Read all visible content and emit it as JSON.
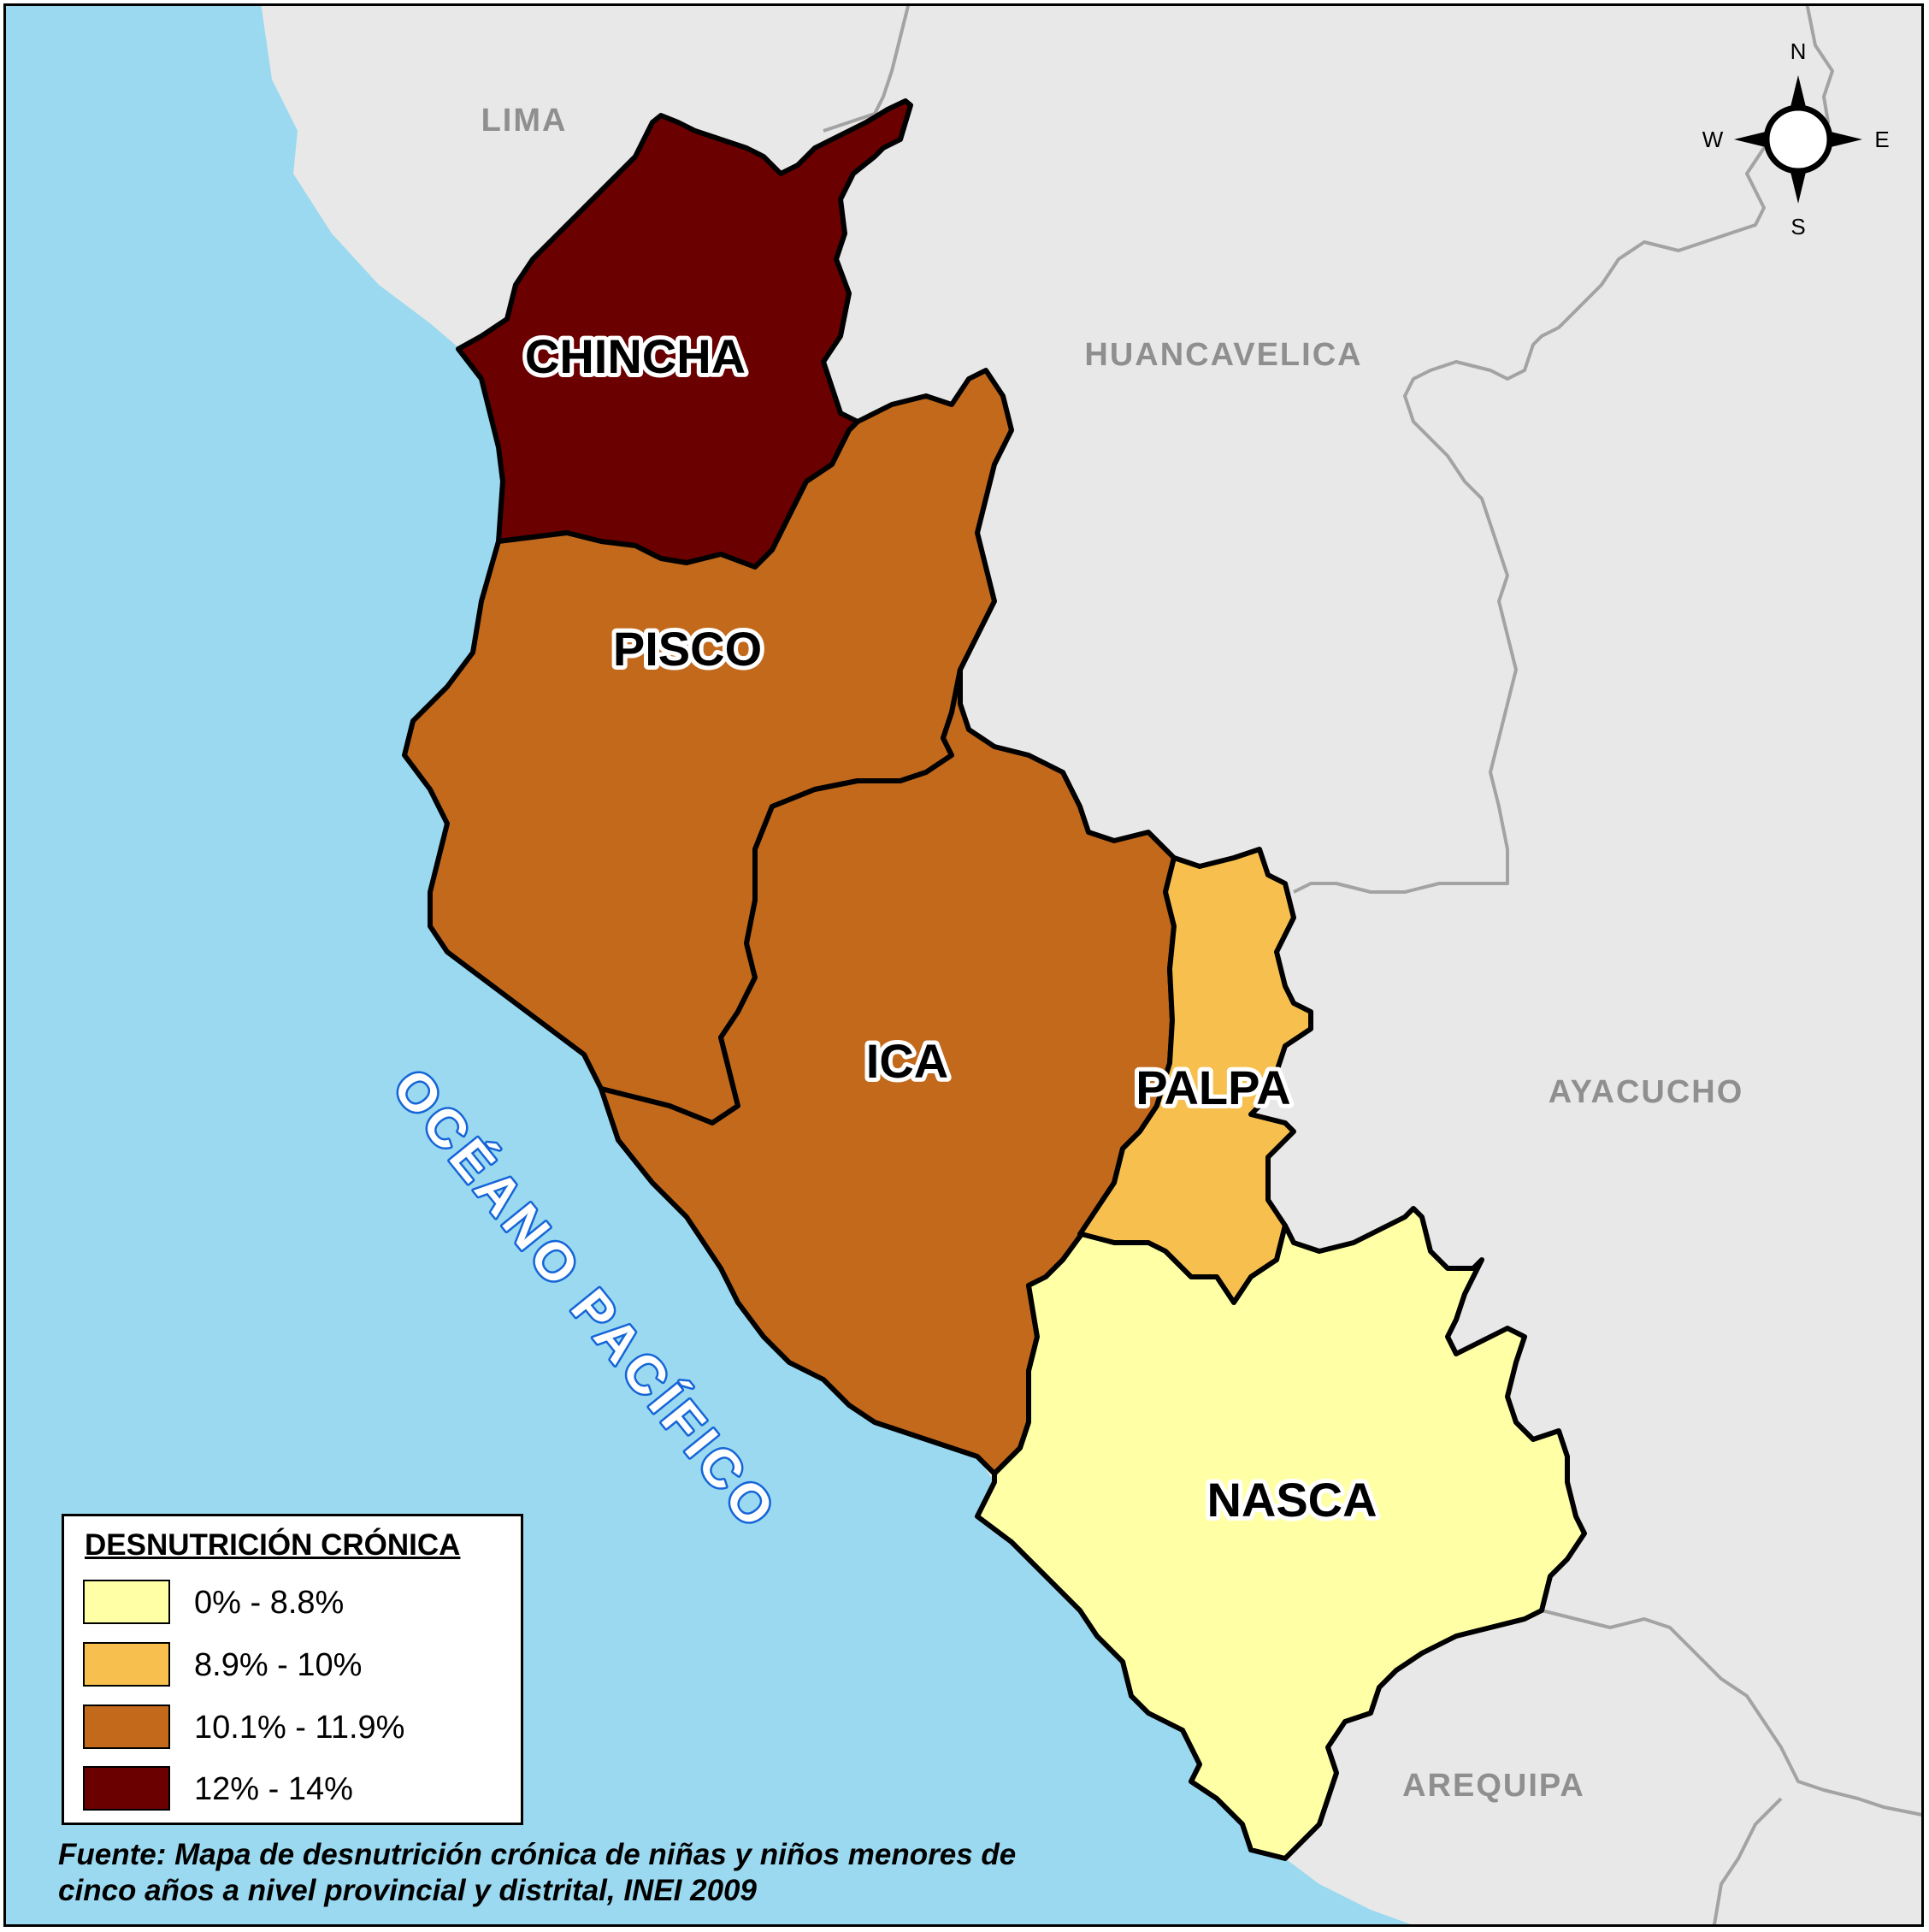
{
  "map": {
    "neighbors": {
      "lima": "LIMA",
      "huancavelica": "HUANCAVELICA",
      "ayacucho": "AYACUCHO",
      "arequipa": "AREQUIPA"
    },
    "ocean_label": "OCÉANO PACÍFICO",
    "compass": {
      "n": "N",
      "s": "S",
      "e": "E",
      "w": "W"
    },
    "provinces": [
      {
        "name": "CHINCHA",
        "class": "12% - 14%",
        "color": "#6b0000"
      },
      {
        "name": "PISCO",
        "class": "10.1% - 11.9%",
        "color": "#c2691c"
      },
      {
        "name": "ICA",
        "class": "10.1% - 11.9%",
        "color": "#c2691c"
      },
      {
        "name": "PALPA",
        "class": "8.9% - 10%",
        "color": "#f7c04e"
      },
      {
        "name": "NASCA",
        "class": "0% - 8.8%",
        "color": "#ffffa6"
      }
    ],
    "colors": {
      "ocean": "#9ad9f0",
      "land": "#e8e8e8",
      "borders": "#a3a3a3",
      "ocean_label": "#1565d8"
    }
  },
  "legend": {
    "title": "DESNUTRICIÓN CRÓNICA",
    "items": [
      {
        "label": "0% - 8.8%",
        "color": "#ffffa6"
      },
      {
        "label": "8.9% - 10%",
        "color": "#f7c04e"
      },
      {
        "label": "10.1% - 11.9%",
        "color": "#c2691c"
      },
      {
        "label": "12% - 14%",
        "color": "#6b0000"
      }
    ]
  },
  "source": {
    "line1": "Fuente: Mapa de desnutrición crónica de niñas y niños menores de",
    "line2": "cinco años a nivel provincial y distrital, INEI 2009"
  }
}
